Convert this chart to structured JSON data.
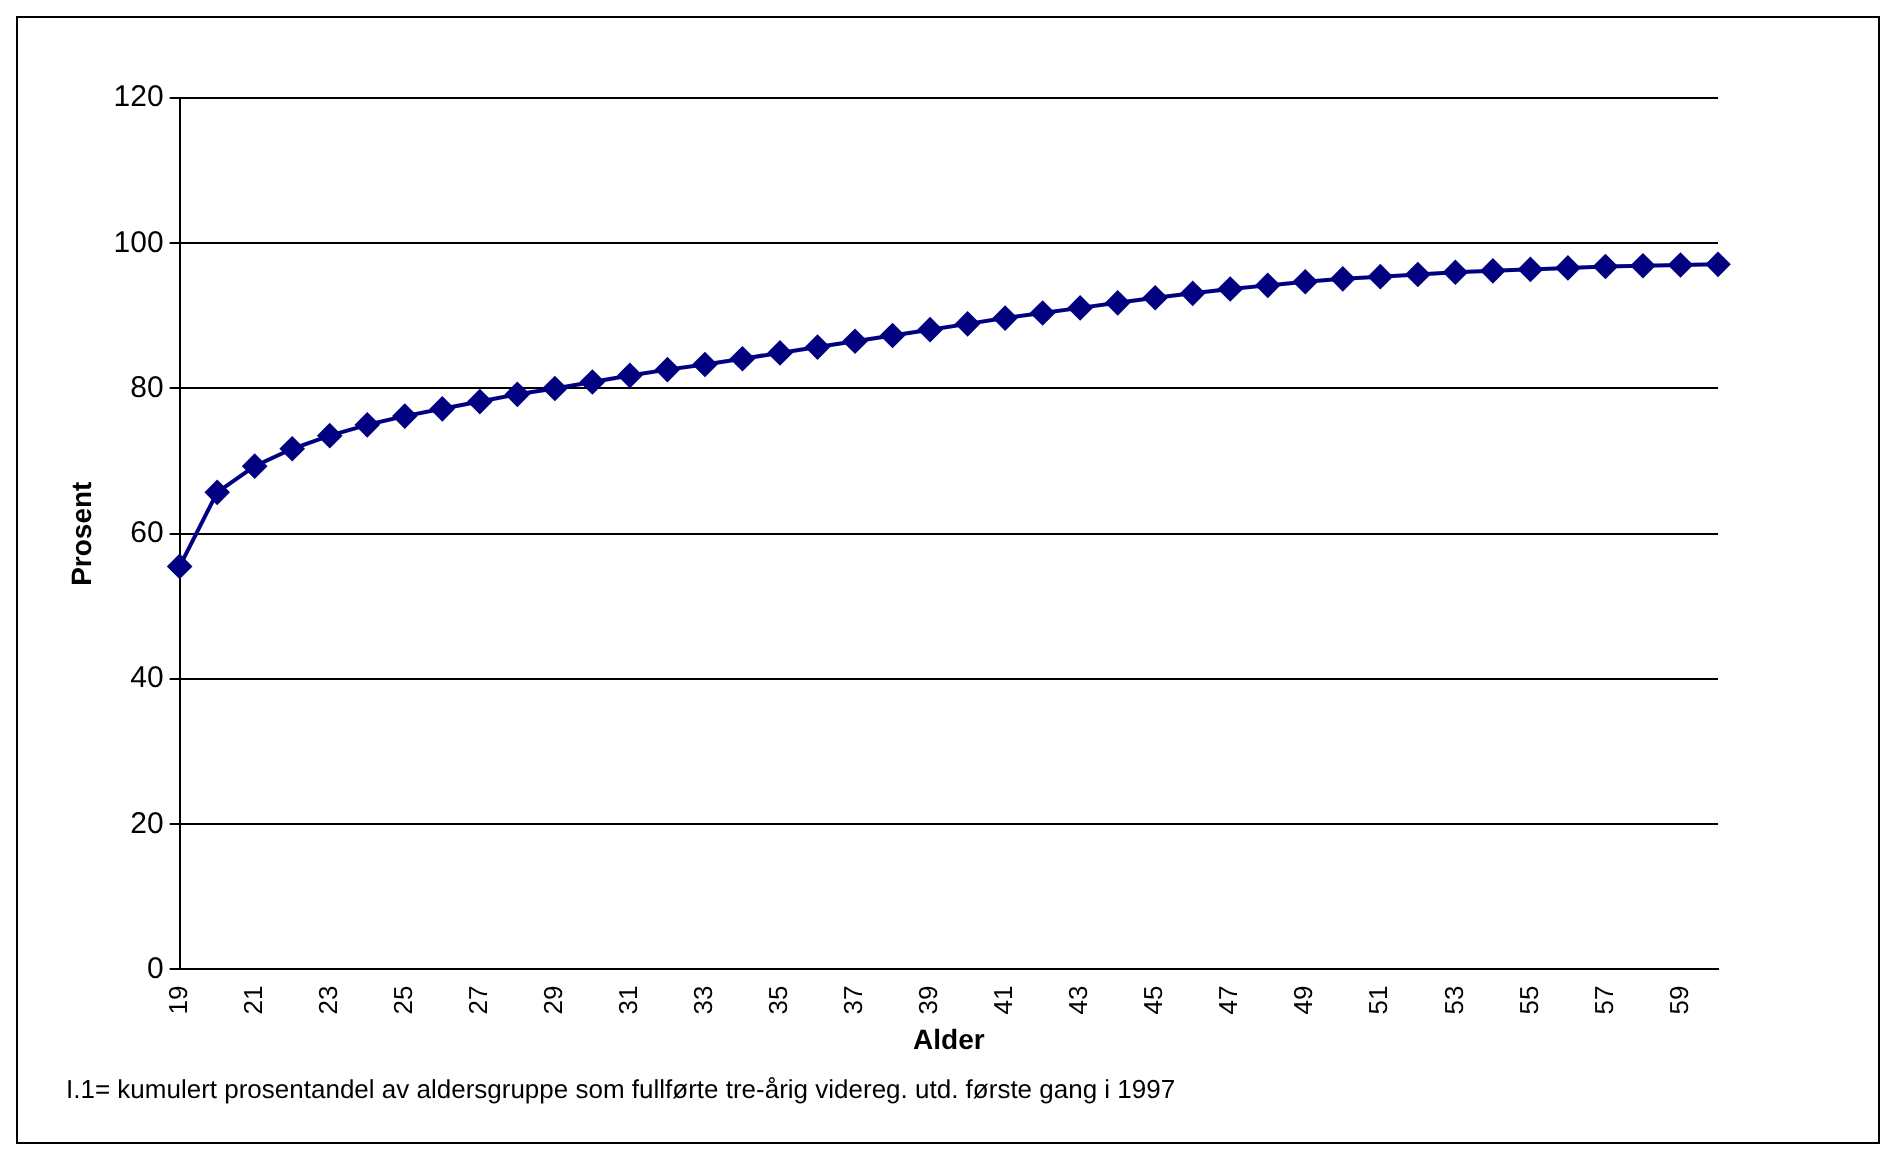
{
  "chart_data": {
    "type": "line",
    "xlabel": "Alder",
    "ylabel": "Prosent",
    "categories": [
      "19",
      null,
      "21",
      null,
      "23",
      null,
      "25",
      null,
      "27",
      null,
      "29",
      null,
      "31",
      null,
      "33",
      null,
      "35",
      null,
      "37",
      null,
      "39",
      null,
      "41",
      null,
      "43",
      null,
      "45",
      null,
      "47",
      null,
      "49",
      null,
      "51",
      null,
      "53",
      null,
      "55",
      null,
      "57",
      null,
      "59",
      null
    ],
    "series": [
      {
        "color": "#000080",
        "values": [
          55.5,
          65.7,
          69.3,
          71.7,
          73.5,
          75,
          76.2,
          77.2,
          78.2,
          79.2,
          80,
          80.9,
          81.8,
          82.6,
          83.3,
          84.1,
          84.9,
          85.7,
          86.5,
          87.3,
          88.1,
          88.9,
          89.7,
          90.4,
          91.1,
          91.8,
          92.5,
          93.1,
          93.7,
          94.2,
          94.7,
          95.1,
          95.4,
          95.7,
          96,
          96.2,
          96.4,
          96.6,
          96.8,
          96.9,
          97,
          97.1
        ]
      }
    ],
    "ylim": [
      0,
      120
    ],
    "yticks": [
      0,
      20,
      40,
      60,
      80,
      100,
      120
    ],
    "grid": "y",
    "legend": false,
    "marker": "diamond",
    "line_style": "solid",
    "annotations": [
      "I.1= kumulert prosentandel av aldersgruppe som fullførte tre-årig videreg. utd. første gang i 1997"
    ]
  }
}
